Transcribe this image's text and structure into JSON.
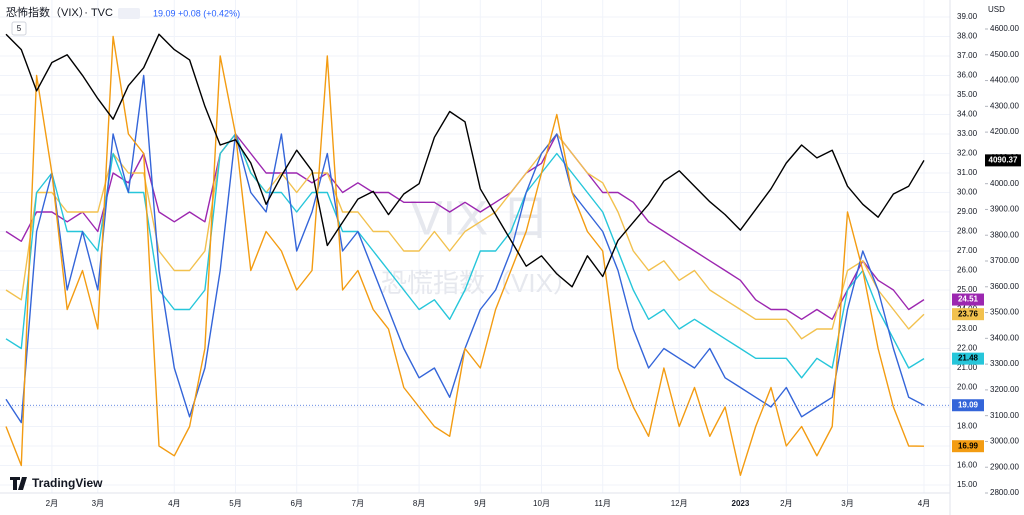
{
  "chart_data": {
    "type": "line",
    "title": "恐怖指数（VIX）· TVC",
    "subtitle": "19.09 +0.08 (+0.42%)",
    "interval_button": "5",
    "watermark": [
      "VIX 日",
      "恐慌指数（VIX）"
    ],
    "brand": "TradingView",
    "y2_unit": "USD",
    "grid": true,
    "categories": [
      null,
      null,
      null,
      "2月",
      null,
      null,
      "3月",
      null,
      null,
      null,
      null,
      "4月",
      null,
      null,
      null,
      "5月",
      null,
      null,
      null,
      "6月",
      null,
      null,
      null,
      "7月",
      null,
      null,
      null,
      "8月",
      null,
      null,
      null,
      "9月",
      null,
      null,
      null,
      "10月",
      null,
      null,
      null,
      "11月",
      null,
      null,
      null,
      null,
      "12月",
      null,
      null,
      null,
      "2023",
      null,
      null,
      "2月",
      null,
      null,
      null,
      "3月",
      null,
      null,
      null,
      null,
      "4月"
    ],
    "ylim": [
      15,
      39
    ],
    "yticks": [
      {
        "value": 15,
        "label": "15.00"
      },
      {
        "value": 16,
        "label": "16.00"
      },
      {
        "value": 17,
        "label": "17.00"
      },
      {
        "value": 18,
        "label": "18.00"
      },
      {
        "value": 19,
        "label": "19.00"
      },
      {
        "value": 20,
        "label": "20.00"
      },
      {
        "value": 21,
        "label": "21.00"
      },
      {
        "value": 22,
        "label": "22.00"
      },
      {
        "value": 23,
        "label": "23.00"
      },
      {
        "value": 24,
        "label": "24.00"
      },
      {
        "value": 25,
        "label": "25.00"
      },
      {
        "value": 26,
        "label": "26.00"
      },
      {
        "value": 27,
        "label": "27.00"
      },
      {
        "value": 28,
        "label": "28.00"
      },
      {
        "value": 29,
        "label": "29.00"
      },
      {
        "value": 30,
        "label": "30.00"
      },
      {
        "value": 31,
        "label": "31.00"
      },
      {
        "value": 32,
        "label": "32.00"
      },
      {
        "value": 33,
        "label": "33.00"
      },
      {
        "value": 34,
        "label": "34.00"
      },
      {
        "value": 35,
        "label": "35.00"
      },
      {
        "value": 36,
        "label": "36.00"
      },
      {
        "value": 37,
        "label": "37.00"
      },
      {
        "value": 38,
        "label": "38.00"
      },
      {
        "value": 39,
        "label": "39.00"
      }
    ],
    "y2lim": [
      2800,
      4600
    ],
    "y2ticks": [
      {
        "value": 2800,
        "label": "2800.00"
      },
      {
        "value": 2900,
        "label": "2900.00"
      },
      {
        "value": 3000,
        "label": "3000.00"
      },
      {
        "value": 3100,
        "label": "3100.00"
      },
      {
        "value": 3200,
        "label": "3200.00"
      },
      {
        "value": 3300,
        "label": "3300.00"
      },
      {
        "value": 3400,
        "label": "3400.00"
      },
      {
        "value": 3500,
        "label": "3500.00"
      },
      {
        "value": 3600,
        "label": "3600.00"
      },
      {
        "value": 3700,
        "label": "3700.00"
      },
      {
        "value": 3800,
        "label": "3800.00"
      },
      {
        "value": 3900,
        "label": "3900.00"
      },
      {
        "value": 4000,
        "label": "4000.00"
      },
      {
        "value": 4100,
        "label": "4100.00"
      },
      {
        "value": 4200,
        "label": "4200.00"
      },
      {
        "value": 4300,
        "label": "4300.00"
      },
      {
        "value": 4400,
        "label": "4400.00"
      },
      {
        "value": 4500,
        "label": "4500.00"
      },
      {
        "value": 4600,
        "label": "4600.00"
      }
    ],
    "series": [
      {
        "color": "#9c27b0",
        "tag_text": "#ffffff",
        "values": [
          28,
          27.5,
          29,
          29,
          28.5,
          29,
          28,
          31,
          30.5,
          32,
          29,
          28.5,
          29,
          28.5,
          32,
          33,
          32,
          31,
          31,
          31,
          30.5,
          31,
          30,
          30.5,
          30,
          30,
          29.5,
          29.5,
          29.5,
          29,
          29.5,
          29,
          29.5,
          30,
          31,
          31.5,
          33,
          32,
          31,
          30,
          30,
          29.5,
          28.5,
          28,
          27.5,
          27,
          26.5,
          26,
          25.5,
          24.5,
          24,
          24,
          23.5,
          24,
          23.5,
          25,
          26.5,
          25.5,
          25,
          24,
          24.51
        ]
      },
      {
        "color": "#f2c14e",
        "tag_text": "#000000",
        "values": [
          25,
          24.5,
          30,
          30,
          29,
          29,
          29,
          32,
          31,
          31,
          27,
          26,
          26,
          27,
          32,
          33,
          31,
          30,
          31,
          30,
          31,
          31,
          29,
          29,
          28,
          28,
          27,
          27,
          28,
          27,
          28,
          28.5,
          29,
          30,
          31,
          32,
          33,
          32,
          31,
          30.5,
          29,
          27,
          26,
          26.5,
          25.5,
          26,
          25,
          24.5,
          24,
          23.5,
          23.5,
          23.5,
          22.5,
          23,
          23,
          26,
          26.5,
          25,
          24,
          23,
          23.76
        ]
      },
      {
        "color": "#26c6da",
        "tag_text": "#000000",
        "values": [
          22.5,
          22,
          30,
          31,
          28,
          28,
          27,
          32,
          30,
          30,
          25,
          24,
          24,
          25,
          32,
          33,
          31,
          30,
          30,
          29,
          30,
          30,
          28,
          28,
          27,
          26,
          25,
          24,
          24.5,
          23.5,
          25,
          27,
          27,
          28,
          30,
          31,
          32,
          31,
          30,
          29,
          27,
          25,
          23.5,
          24,
          23,
          23.5,
          23,
          22.5,
          22,
          21.5,
          21.5,
          21.5,
          20.5,
          21.5,
          21,
          25,
          26,
          24,
          22.5,
          21,
          21.48
        ]
      },
      {
        "color": "#3465d9",
        "tag_text": "#ffffff",
        "values": [
          19.4,
          18.2,
          28,
          31,
          25,
          28,
          25,
          33,
          30,
          36,
          26,
          21,
          18.5,
          21,
          26,
          33,
          30,
          29,
          33,
          27,
          29,
          32,
          27,
          28,
          26,
          24,
          22,
          20.5,
          21,
          19.5,
          22,
          24,
          25,
          27,
          30,
          32,
          33,
          30,
          29,
          28,
          26,
          23,
          21,
          22,
          21.5,
          21,
          22,
          20.5,
          20,
          19.5,
          19,
          20,
          18.5,
          19,
          19.5,
          24,
          27,
          25,
          22,
          19.5,
          19.09
        ]
      },
      {
        "color": "#f39c12",
        "tag_text": "#000000",
        "values": [
          18,
          16,
          36,
          31,
          24,
          26,
          23,
          38,
          33,
          32,
          17,
          16.5,
          18,
          22,
          37,
          33,
          26,
          28,
          27,
          25,
          26,
          37,
          25,
          26,
          24,
          23,
          20,
          19,
          18,
          17.5,
          22,
          21,
          24,
          26,
          28,
          31,
          34,
          30,
          28,
          27,
          21,
          19,
          17.5,
          21,
          18,
          20,
          17.5,
          19,
          15.5,
          18,
          20,
          17,
          18,
          16.5,
          18,
          29,
          26,
          22,
          19,
          17,
          16.99
        ]
      },
      {
        "color": "#000000",
        "tag_text": "#ffffff",
        "axis": "y2",
        "values": [
          4580,
          4520,
          4360,
          4470,
          4500,
          4420,
          4330,
          4250,
          4380,
          4450,
          4580,
          4520,
          4480,
          4300,
          4150,
          4170,
          4080,
          3920,
          4030,
          4130,
          4050,
          3760,
          3850,
          3940,
          3970,
          3880,
          3960,
          4000,
          4180,
          4280,
          4240,
          3980,
          3880,
          3780,
          3680,
          3720,
          3650,
          3600,
          3720,
          3640,
          3780,
          3850,
          3920,
          4010,
          4050,
          3990,
          3930,
          3880,
          3820,
          3900,
          3980,
          4080,
          4150,
          4100,
          4130,
          3990,
          3920,
          3870,
          3960,
          3990,
          4090.37
        ]
      }
    ]
  }
}
